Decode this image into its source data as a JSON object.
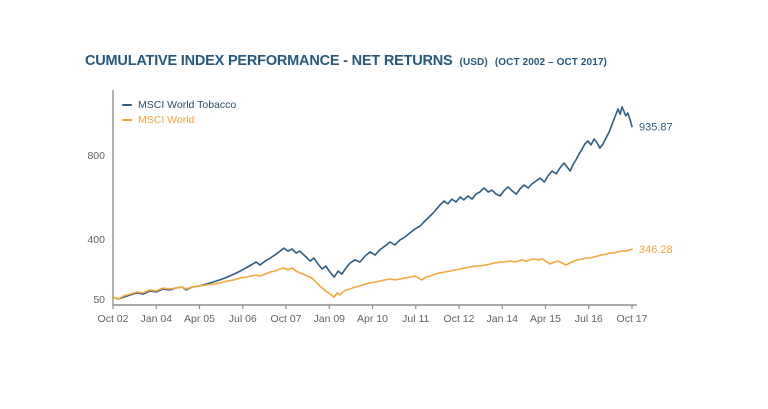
{
  "header": {
    "title": "CUMULATIVE INDEX PERFORMANCE - NET RETURNS",
    "currency_note": "(USD)",
    "period_note": "(OCT 2002 – OCT 2017)"
  },
  "colors": {
    "title": "#26587F",
    "axis": "#8C9196",
    "tick_text": "#5E6166",
    "tobacco_line": "#2F5D84",
    "world_line": "#F3A73E",
    "legend_tobacco_text": "#2B4E6B",
    "legend_world_text": "#F2A43B"
  },
  "chart_data": {
    "type": "line",
    "title": "CUMULATIVE INDEX PERFORMANCE - NET RETURNS (USD) (OCT 2002 - OCT 2017)",
    "x_axis": {
      "labels": [
        "Oct 02",
        "Jan 04",
        "Apr 05",
        "Jul 06",
        "Oct 07",
        "Jan 09",
        "Apr 10",
        "Jul 11",
        "Oct 12",
        "Jan 14",
        "Apr 15",
        "Jul 16",
        "Oct 17"
      ]
    },
    "y_axis": {
      "ticks": [
        800,
        400,
        50
      ],
      "range": [
        50,
        1060
      ],
      "grid": false
    },
    "legend_position": "top-left-inside",
    "legend": [
      {
        "name": "MSCI World Tobacco",
        "color": "#2F5D84"
      },
      {
        "name": "MSCI World",
        "color": "#F3A73E"
      }
    ],
    "series": [
      {
        "name": "MSCI World Tobacco",
        "color": "#2F5D84",
        "end_label": "935.87",
        "points": [
          [
            0,
            92
          ],
          [
            0.01,
            82
          ],
          [
            0.021,
            92
          ],
          [
            0.033,
            103
          ],
          [
            0.046,
            114
          ],
          [
            0.058,
            108
          ],
          [
            0.071,
            124
          ],
          [
            0.083,
            119
          ],
          [
            0.096,
            135
          ],
          [
            0.11,
            130
          ],
          [
            0.121,
            140
          ],
          [
            0.133,
            145
          ],
          [
            0.141,
            130
          ],
          [
            0.152,
            145
          ],
          [
            0.166,
            151
          ],
          [
            0.179,
            161
          ],
          [
            0.193,
            172
          ],
          [
            0.206,
            183
          ],
          [
            0.22,
            198
          ],
          [
            0.233,
            214
          ],
          [
            0.245,
            230
          ],
          [
            0.256,
            246
          ],
          [
            0.266,
            262
          ],
          [
            0.276,
            278
          ],
          [
            0.283,
            262
          ],
          [
            0.293,
            283
          ],
          [
            0.303,
            299
          ],
          [
            0.312,
            315
          ],
          [
            0.322,
            336
          ],
          [
            0.329,
            352
          ],
          [
            0.337,
            336
          ],
          [
            0.345,
            347
          ],
          [
            0.353,
            326
          ],
          [
            0.36,
            336
          ],
          [
            0.37,
            310
          ],
          [
            0.38,
            283
          ],
          [
            0.387,
            299
          ],
          [
            0.395,
            267
          ],
          [
            0.403,
            241
          ],
          [
            0.41,
            257
          ],
          [
            0.418,
            225
          ],
          [
            0.426,
            198
          ],
          [
            0.434,
            230
          ],
          [
            0.441,
            214
          ],
          [
            0.449,
            246
          ],
          [
            0.457,
            273
          ],
          [
            0.466,
            289
          ],
          [
            0.476,
            278
          ],
          [
            0.486,
            310
          ],
          [
            0.495,
            331
          ],
          [
            0.505,
            315
          ],
          [
            0.514,
            342
          ],
          [
            0.524,
            363
          ],
          [
            0.534,
            384
          ],
          [
            0.543,
            368
          ],
          [
            0.553,
            395
          ],
          [
            0.563,
            410
          ],
          [
            0.572,
            429
          ],
          [
            0.582,
            448
          ],
          [
            0.592,
            462
          ],
          [
            0.599,
            481
          ],
          [
            0.607,
            500
          ],
          [
            0.615,
            519
          ],
          [
            0.622,
            538
          ],
          [
            0.63,
            562
          ],
          [
            0.638,
            581
          ],
          [
            0.645,
            567
          ],
          [
            0.653,
            590
          ],
          [
            0.661,
            576
          ],
          [
            0.669,
            600
          ],
          [
            0.676,
            586
          ],
          [
            0.684,
            605
          ],
          [
            0.692,
            590
          ],
          [
            0.699,
            614
          ],
          [
            0.707,
            624
          ],
          [
            0.715,
            643
          ],
          [
            0.723,
            624
          ],
          [
            0.73,
            633
          ],
          [
            0.738,
            614
          ],
          [
            0.746,
            605
          ],
          [
            0.753,
            629
          ],
          [
            0.761,
            648
          ],
          [
            0.769,
            629
          ],
          [
            0.777,
            614
          ],
          [
            0.784,
            638
          ],
          [
            0.792,
            657
          ],
          [
            0.8,
            643
          ],
          [
            0.807,
            662
          ],
          [
            0.815,
            676
          ],
          [
            0.823,
            690
          ],
          [
            0.831,
            671
          ],
          [
            0.838,
            700
          ],
          [
            0.846,
            724
          ],
          [
            0.854,
            710
          ],
          [
            0.861,
            738
          ],
          [
            0.869,
            762
          ],
          [
            0.875,
            743
          ],
          [
            0.881,
            724
          ],
          [
            0.886,
            752
          ],
          [
            0.892,
            776
          ],
          [
            0.898,
            805
          ],
          [
            0.904,
            829
          ],
          [
            0.909,
            852
          ],
          [
            0.915,
            867
          ],
          [
            0.921,
            848
          ],
          [
            0.927,
            876
          ],
          [
            0.933,
            857
          ],
          [
            0.938,
            833
          ],
          [
            0.944,
            852
          ],
          [
            0.95,
            881
          ],
          [
            0.956,
            910
          ],
          [
            0.961,
            943
          ],
          [
            0.967,
            981
          ],
          [
            0.973,
            1019
          ],
          [
            0.977,
            995
          ],
          [
            0.981,
            1029
          ],
          [
            0.985,
            1005
          ],
          [
            0.988,
            986
          ],
          [
            0.992,
            1000
          ],
          [
            0.996,
            971
          ],
          [
            1,
            935.87
          ]
        ]
      },
      {
        "name": "MSCI World",
        "color": "#F3A73E",
        "end_label": "346.28",
        "points": [
          [
            0,
            92
          ],
          [
            0.01,
            82
          ],
          [
            0.021,
            98
          ],
          [
            0.033,
            108
          ],
          [
            0.046,
            119
          ],
          [
            0.058,
            114
          ],
          [
            0.071,
            130
          ],
          [
            0.083,
            124
          ],
          [
            0.096,
            140
          ],
          [
            0.11,
            135
          ],
          [
            0.121,
            140
          ],
          [
            0.133,
            145
          ],
          [
            0.141,
            135
          ],
          [
            0.152,
            145
          ],
          [
            0.166,
            151
          ],
          [
            0.179,
            156
          ],
          [
            0.193,
            161
          ],
          [
            0.206,
            167
          ],
          [
            0.22,
            177
          ],
          [
            0.233,
            183
          ],
          [
            0.245,
            193
          ],
          [
            0.256,
            198
          ],
          [
            0.266,
            204
          ],
          [
            0.276,
            209
          ],
          [
            0.283,
            204
          ],
          [
            0.293,
            214
          ],
          [
            0.303,
            225
          ],
          [
            0.312,
            230
          ],
          [
            0.322,
            241
          ],
          [
            0.329,
            246
          ],
          [
            0.337,
            236
          ],
          [
            0.345,
            246
          ],
          [
            0.353,
            230
          ],
          [
            0.36,
            220
          ],
          [
            0.37,
            209
          ],
          [
            0.38,
            198
          ],
          [
            0.387,
            183
          ],
          [
            0.395,
            161
          ],
          [
            0.403,
            140
          ],
          [
            0.41,
            124
          ],
          [
            0.418,
            108
          ],
          [
            0.426,
            92
          ],
          [
            0.432,
            114
          ],
          [
            0.437,
            103
          ],
          [
            0.443,
            119
          ],
          [
            0.449,
            130
          ],
          [
            0.457,
            135
          ],
          [
            0.466,
            145
          ],
          [
            0.476,
            151
          ],
          [
            0.486,
            161
          ],
          [
            0.495,
            167
          ],
          [
            0.505,
            172
          ],
          [
            0.514,
            177
          ],
          [
            0.524,
            183
          ],
          [
            0.534,
            188
          ],
          [
            0.543,
            183
          ],
          [
            0.553,
            188
          ],
          [
            0.563,
            193
          ],
          [
            0.572,
            198
          ],
          [
            0.582,
            204
          ],
          [
            0.588,
            193
          ],
          [
            0.595,
            183
          ],
          [
            0.603,
            198
          ],
          [
            0.611,
            204
          ],
          [
            0.62,
            214
          ],
          [
            0.63,
            220
          ],
          [
            0.64,
            225
          ],
          [
            0.649,
            230
          ],
          [
            0.659,
            236
          ],
          [
            0.669,
            241
          ],
          [
            0.678,
            246
          ],
          [
            0.688,
            252
          ],
          [
            0.698,
            257
          ],
          [
            0.707,
            257
          ],
          [
            0.717,
            262
          ],
          [
            0.726,
            267
          ],
          [
            0.736,
            273
          ],
          [
            0.746,
            278
          ],
          [
            0.755,
            278
          ],
          [
            0.765,
            283
          ],
          [
            0.775,
            278
          ],
          [
            0.78,
            283
          ],
          [
            0.788,
            289
          ],
          [
            0.796,
            283
          ],
          [
            0.803,
            289
          ],
          [
            0.811,
            294
          ],
          [
            0.819,
            289
          ],
          [
            0.827,
            294
          ],
          [
            0.834,
            283
          ],
          [
            0.842,
            267
          ],
          [
            0.85,
            278
          ],
          [
            0.857,
            283
          ],
          [
            0.865,
            273
          ],
          [
            0.873,
            262
          ],
          [
            0.88,
            273
          ],
          [
            0.888,
            283
          ],
          [
            0.896,
            289
          ],
          [
            0.904,
            294
          ],
          [
            0.911,
            299
          ],
          [
            0.919,
            299
          ],
          [
            0.927,
            305
          ],
          [
            0.934,
            310
          ],
          [
            0.942,
            315
          ],
          [
            0.95,
            320
          ],
          [
            0.957,
            326
          ],
          [
            0.965,
            326
          ],
          [
            0.973,
            331
          ],
          [
            0.981,
            336
          ],
          [
            0.988,
            336
          ],
          [
            0.996,
            342
          ],
          [
            1,
            346.28
          ]
        ]
      }
    ]
  }
}
